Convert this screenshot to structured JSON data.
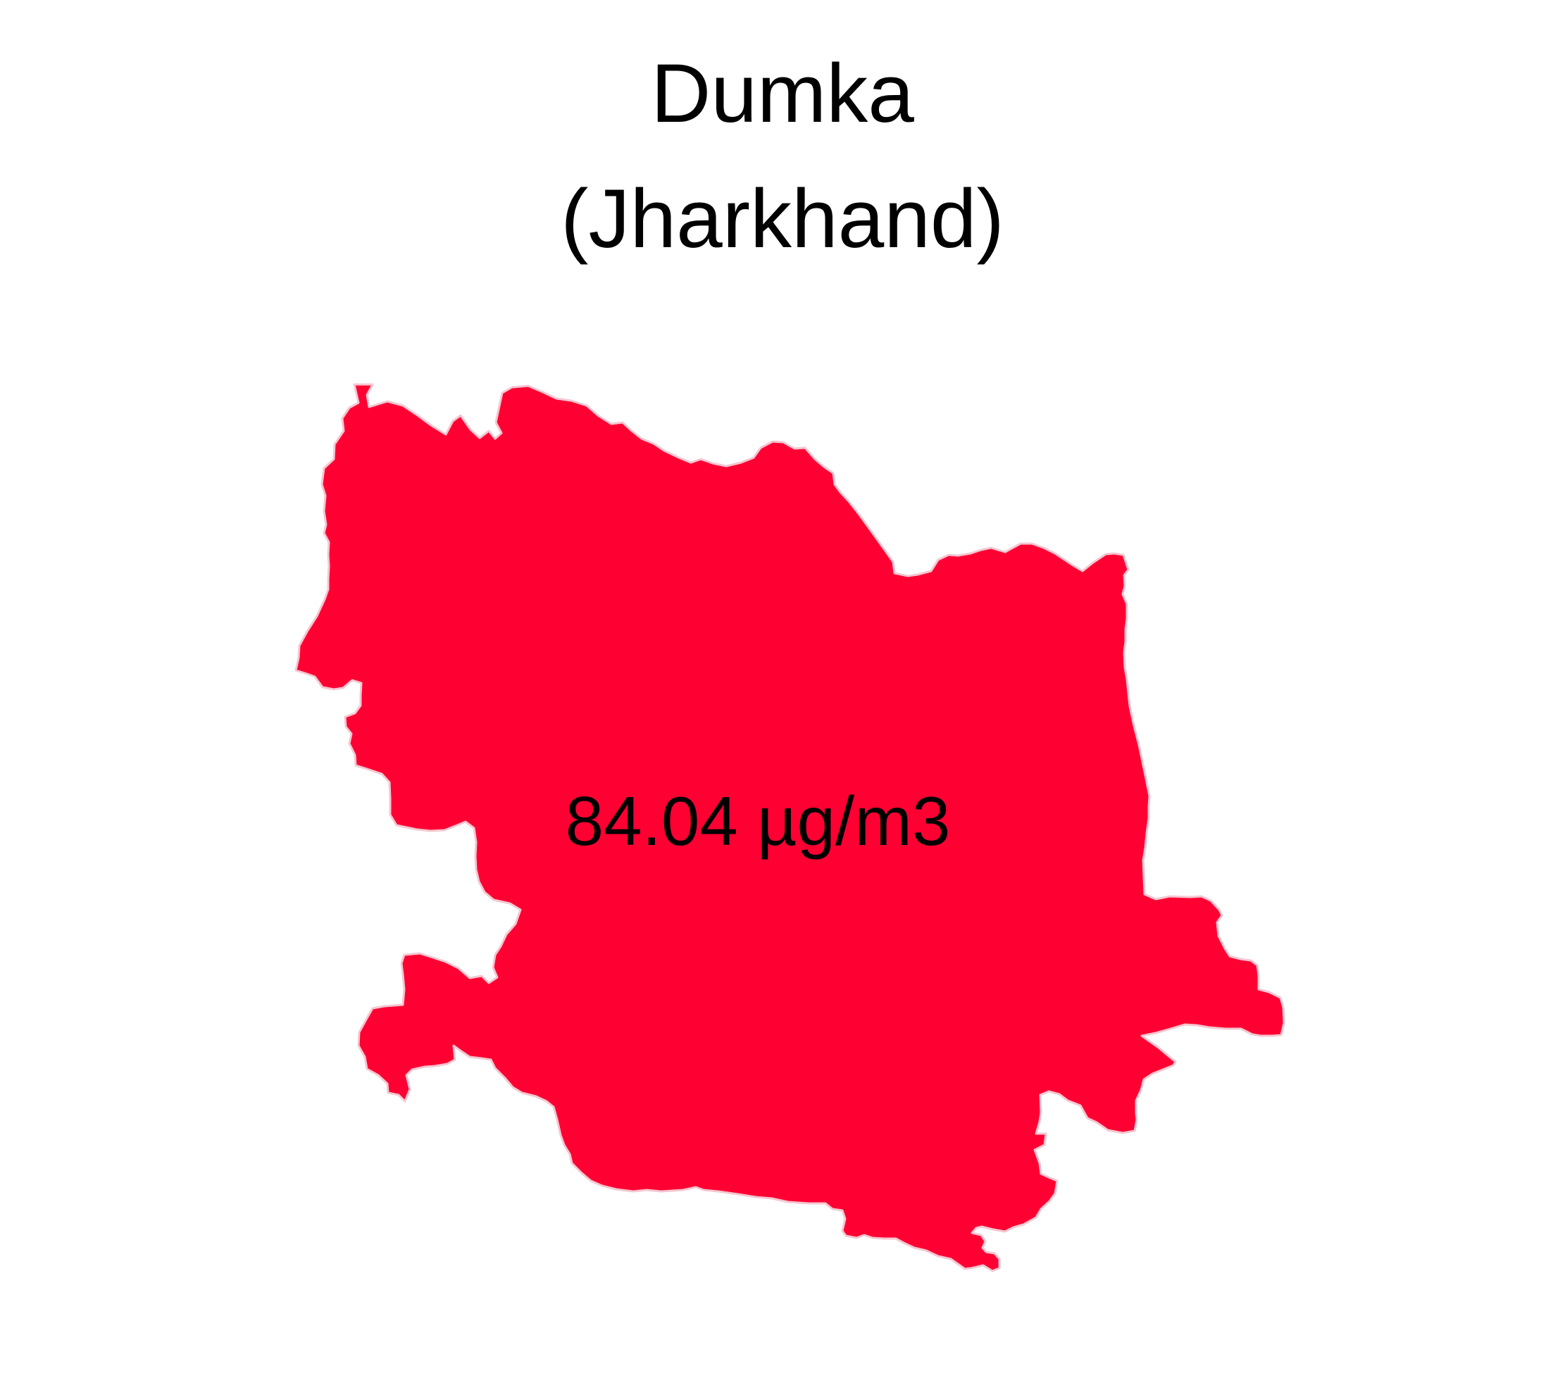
{
  "map": {
    "title": "Dumka",
    "subtitle": "(Jharkhand)",
    "region_label": "84.04 µg/m3",
    "value": 84.04,
    "unit": "µg/m3",
    "fill_color": "#FF0033",
    "border_color": "#F4C6D0",
    "background_color": "#FFFFFF"
  }
}
